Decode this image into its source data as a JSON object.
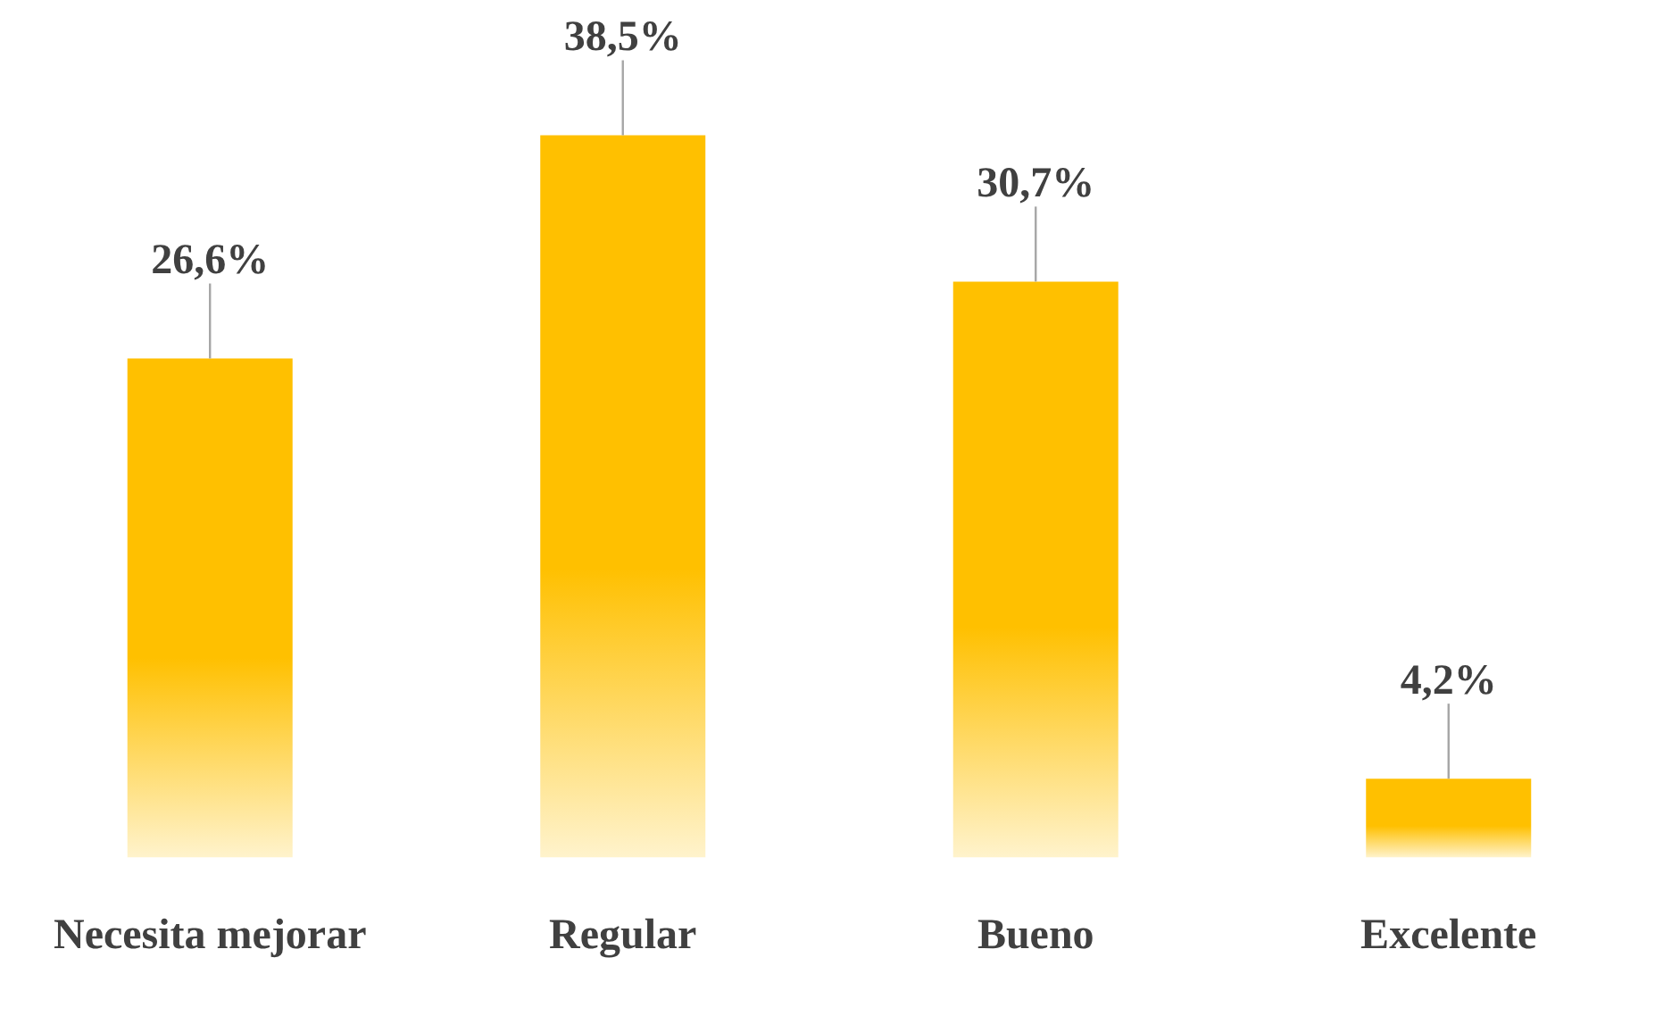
{
  "chart_data": {
    "type": "bar",
    "categories": [
      "Necesita mejorar",
      "Regular",
      "Bueno",
      "Excelente"
    ],
    "values": [
      26.6,
      38.5,
      30.7,
      4.2
    ],
    "value_labels": [
      "26,6%",
      "38,5%",
      "30,7%",
      "4,2%"
    ],
    "color": "#ffc000",
    "grid": false,
    "legend": false,
    "tick_labels": "x"
  }
}
